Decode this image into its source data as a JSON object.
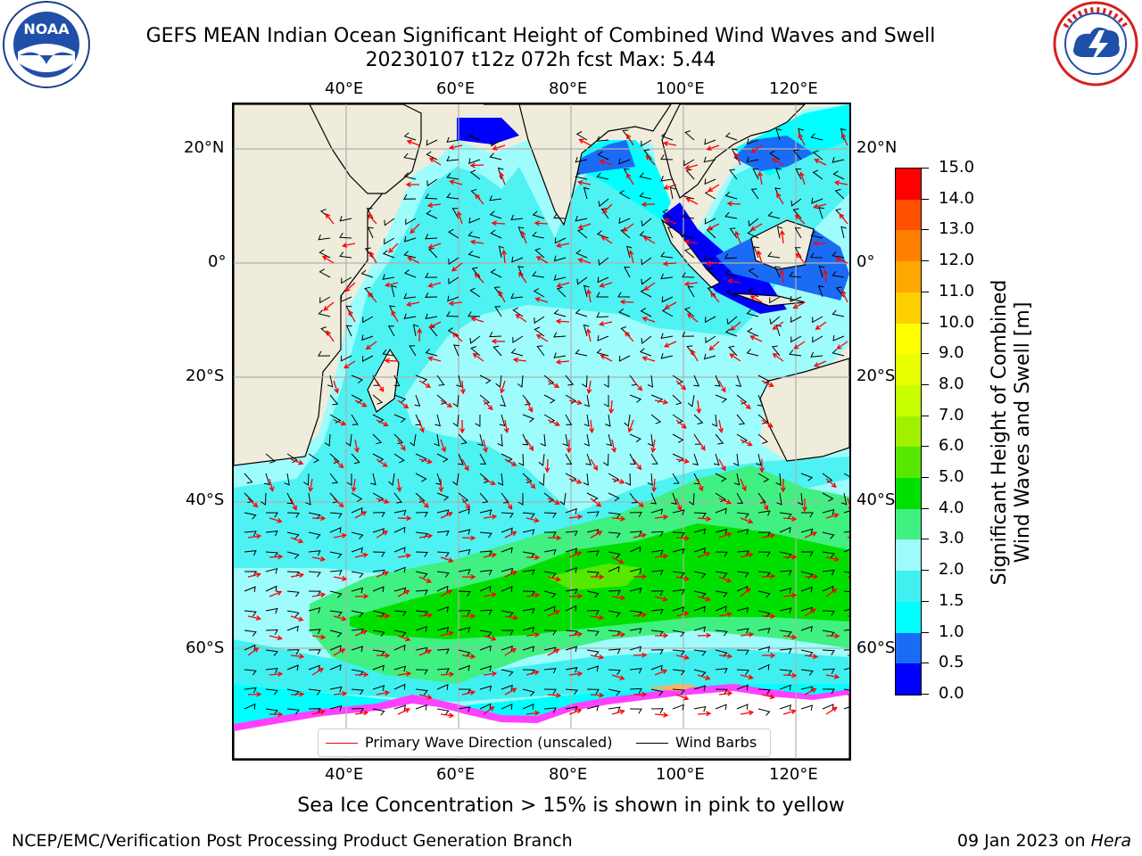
{
  "title": {
    "line1": "GEFS MEAN Indian Ocean Significant Height of Combined Wind Waves and Swell",
    "line2": "20230107 t12z 072h fcst   Max: 5.44"
  },
  "logos": {
    "noaa_text": "NOAA",
    "noaa_ring": "NATIONAL OCEANIC AND ATMOSPHERIC ADMINISTRATION · U.S. DEPARTMENT OF COMMERCE",
    "nws_ring": "NATIONAL WEATHER SERVICE"
  },
  "map": {
    "lon_ticks": [
      "40°E",
      "60°E",
      "80°E",
      "100°E",
      "120°E"
    ],
    "lat_ticks": [
      "20°N",
      "0°",
      "20°S",
      "40°S",
      "60°S"
    ],
    "land_color": "#efecdc",
    "grid_color": "#b0b0b0"
  },
  "legend": {
    "wave": "Primary Wave Direction (unscaled)",
    "wind": "Wind Barbs",
    "wave_color": "#ff0000",
    "wind_color": "#000000"
  },
  "colorbar": {
    "label_line1": "Significant Height of Combined",
    "label_line2": "Wind Waves and Swell [m]",
    "ticks": [
      "0.0",
      "0.5",
      "1.0",
      "1.5",
      "2.0",
      "3.0",
      "4.0",
      "5.0",
      "6.0",
      "7.0",
      "8.0",
      "9.0",
      "10.0",
      "11.0",
      "12.0",
      "13.0",
      "14.0",
      "15.0"
    ],
    "colors": [
      "#0000ff",
      "#1a6cf5",
      "#00ffff",
      "#40f0f0",
      "#9ffcfc",
      "#40f080",
      "#00e000",
      "#56e800",
      "#a0f000",
      "#c8ff00",
      "#e8ff00",
      "#ffff00",
      "#ffd000",
      "#ffa800",
      "#ff8000",
      "#ff5000",
      "#ff0000"
    ]
  },
  "note": "Sea Ice Concentration > 15% is shown in pink to yellow",
  "footer": {
    "left": "NCEP/EMC/Verification Post Processing Product Generation Branch",
    "right_date": "09 Jan 2023 on ",
    "right_machine": "Hera"
  }
}
